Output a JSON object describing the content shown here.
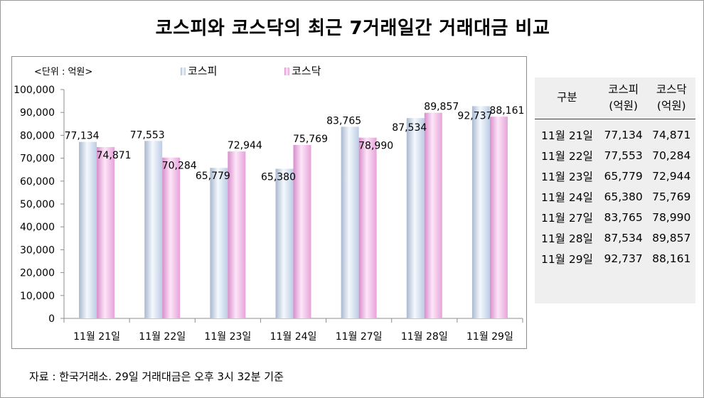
{
  "title": "코스피와 코스닥의 최근 7거래일간 거래대금 비교",
  "source": "자료 : 한국거래소. 29일 거래대금은 오후 3시 32분 기준",
  "colors": {
    "kospi": "#c9d9ee",
    "kosdaq": "#f2b8e8"
  },
  "chart_data": {
    "type": "bar",
    "unit_label": "<단위 : 억원>",
    "categories": [
      "11월 21일",
      "11월 22일",
      "11월 23일",
      "11월 24일",
      "11월 27일",
      "11월 28일",
      "11월 29일"
    ],
    "series": [
      {
        "name": "코스피",
        "values": [
          77134,
          77553,
          65779,
          65380,
          83765,
          87534,
          92737
        ]
      },
      {
        "name": "코스닥",
        "values": [
          74871,
          70284,
          72944,
          75769,
          78990,
          89857,
          88161
        ]
      }
    ],
    "value_labels": {
      "kospi": [
        "77,134",
        "77,553",
        "65,779",
        "65,380",
        "83,765",
        "87,534",
        "92,737"
      ],
      "kosdaq": [
        "74,871",
        "70,284",
        "72,944",
        "75,769",
        "78,990",
        "89,857",
        "88,161"
      ]
    },
    "yticks": [
      "0",
      "10,000",
      "20,000",
      "30,000",
      "40,000",
      "50,000",
      "60,000",
      "70,000",
      "80,000",
      "90,000",
      "100,000"
    ],
    "ylim": [
      0,
      100000
    ],
    "grid": false,
    "legend": "top"
  },
  "table": {
    "header": {
      "col0": "구분",
      "col1_line1": "코스피",
      "col1_line2": "(억원)",
      "col2_line1": "코스닥",
      "col2_line2": "(억원)"
    },
    "rows": [
      [
        "11월 21일",
        "77,134",
        "74,871"
      ],
      [
        "11월 22일",
        "77,553",
        "70,284"
      ],
      [
        "11월 23일",
        "65,779",
        "72,944"
      ],
      [
        "11월 24일",
        "65,380",
        "75,769"
      ],
      [
        "11월 27일",
        "83,765",
        "78,990"
      ],
      [
        "11월 28일",
        "87,534",
        "89,857"
      ],
      [
        "11월 29일",
        "92,737",
        "88,161"
      ]
    ]
  }
}
